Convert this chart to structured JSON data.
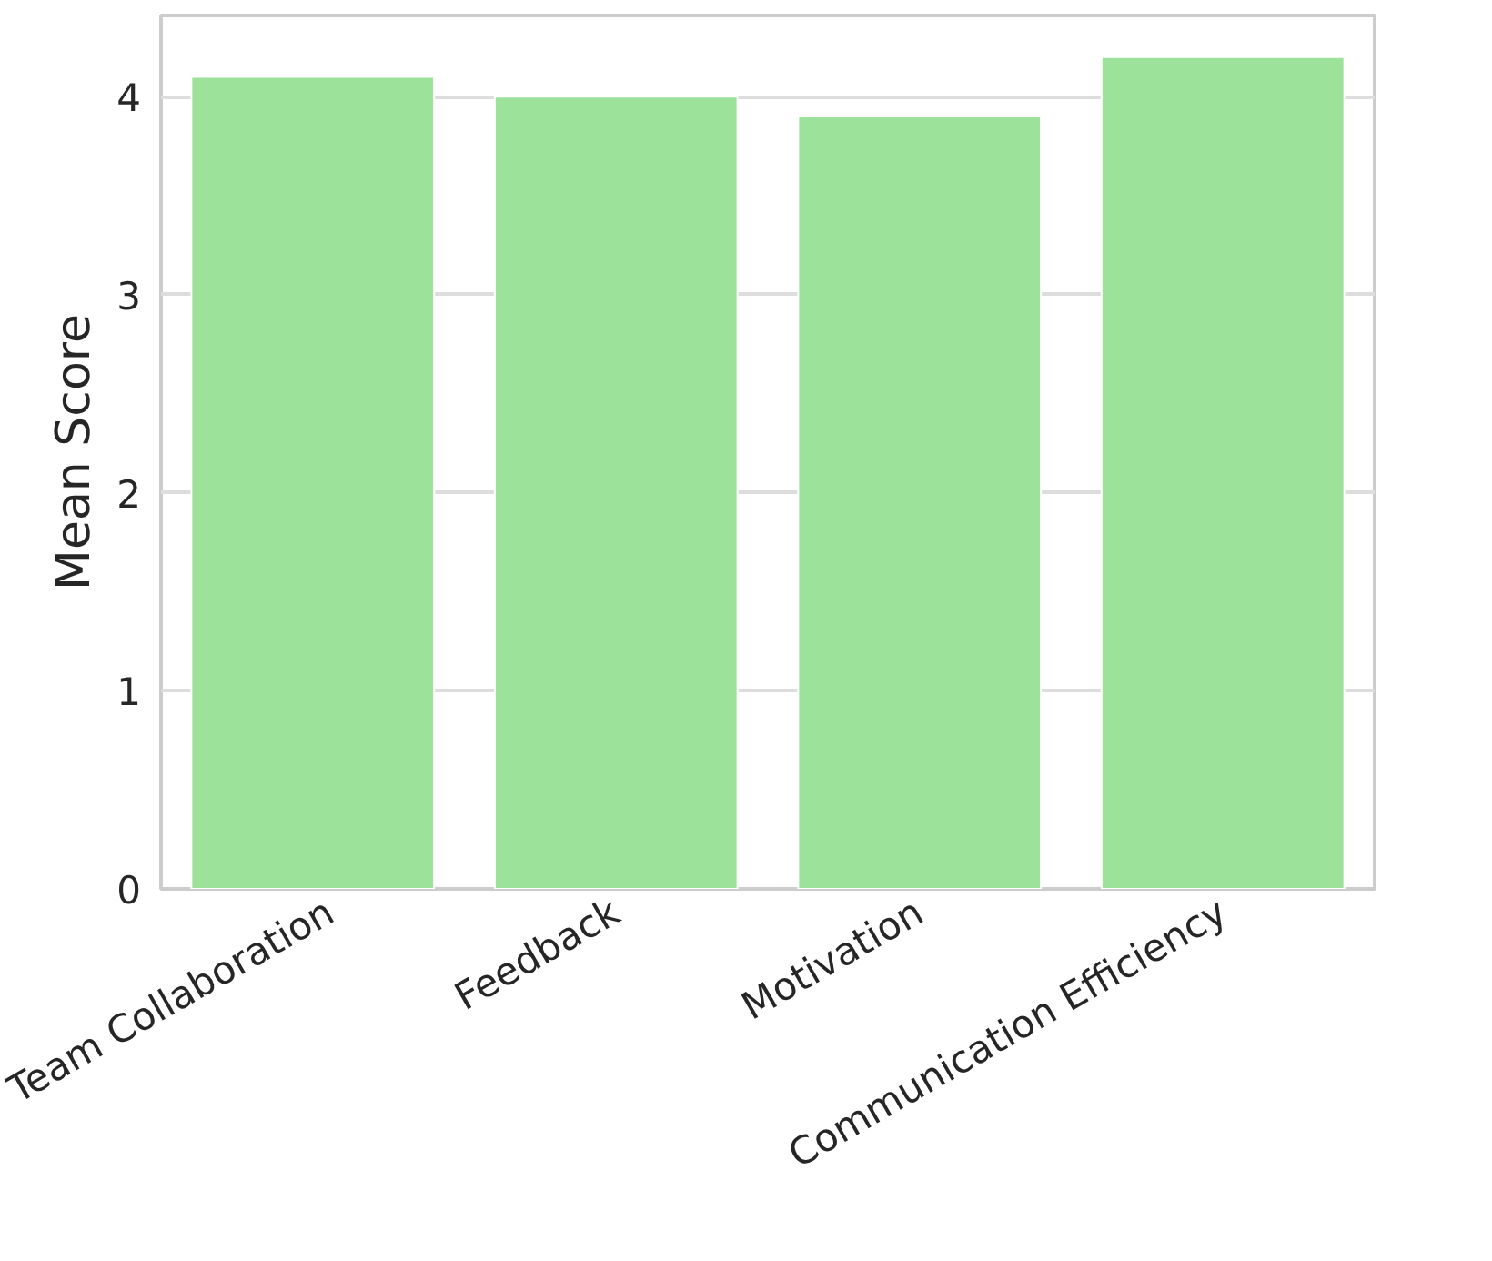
{
  "chart_data": {
    "type": "bar",
    "categories": [
      "Team Collaboration",
      "Feedback",
      "Motivation",
      "Communication Efficiency"
    ],
    "values": [
      4.1,
      4.0,
      3.9,
      4.2
    ],
    "color": "#9de29b",
    "ylabel": "Mean Score",
    "ylim": [
      0,
      4.41
    ],
    "yticks": [
      0,
      1,
      2,
      3,
      4
    ],
    "grid": "y"
  }
}
